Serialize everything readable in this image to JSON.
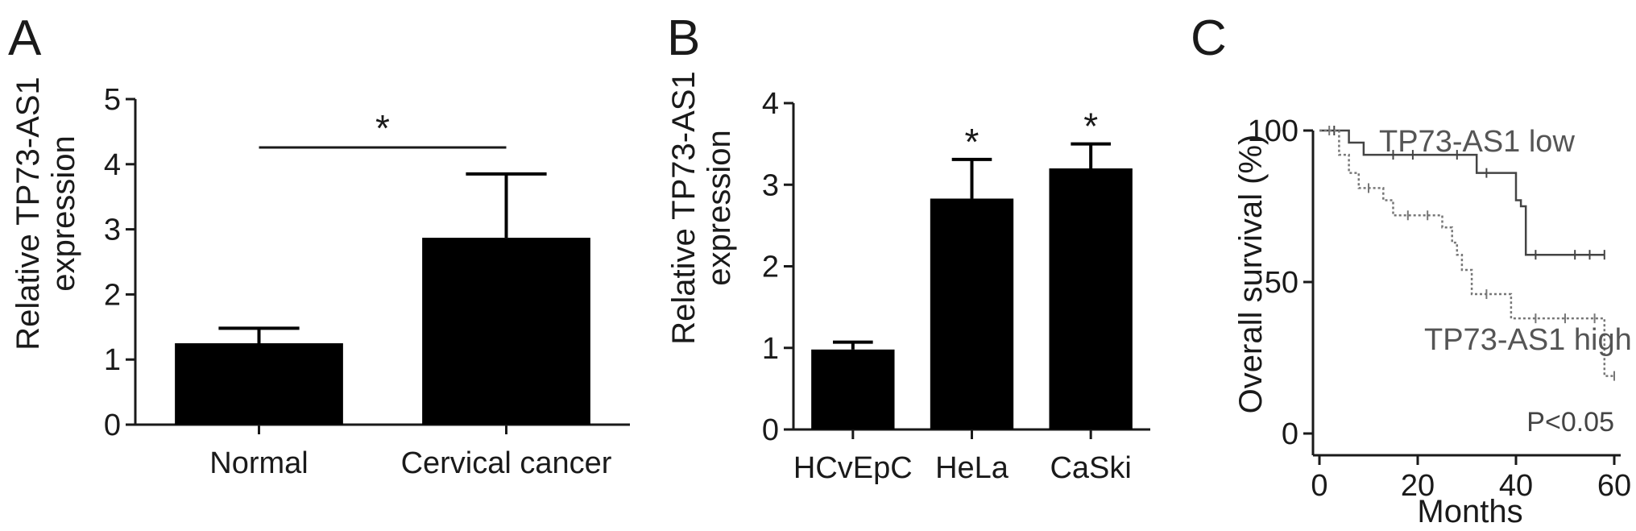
{
  "chart_data": [
    {
      "panel": "A",
      "type": "bar",
      "categories": [
        "Normal",
        "Cervical cancer"
      ],
      "values": [
        1.25,
        2.87
      ],
      "errors": [
        0.23,
        0.98
      ],
      "ylabel_lines": [
        "Relative TP73-AS1",
        "expression"
      ],
      "ylim": [
        0,
        5
      ],
      "yticks": [
        "0",
        "1",
        "2",
        "3",
        "4",
        "5"
      ],
      "significance": {
        "marker": "*",
        "between": [
          0,
          1
        ]
      }
    },
    {
      "panel": "B",
      "type": "bar",
      "categories": [
        "HCvEpC",
        "HeLa",
        "CaSki"
      ],
      "values": [
        0.98,
        2.83,
        3.2
      ],
      "errors": [
        0.09,
        0.48,
        0.3
      ],
      "ylabel_lines": [
        "Relative TP73-AS1",
        "expression"
      ],
      "ylim": [
        0,
        4
      ],
      "yticks": [
        "0",
        "1",
        "2",
        "3",
        "4"
      ],
      "markers": [
        "",
        "*",
        "*"
      ]
    },
    {
      "panel": "C",
      "type": "line",
      "subtype": "kaplan-meier",
      "xlabel": "Months",
      "ylabel": "Overall survival (%)",
      "xlim": [
        0,
        60
      ],
      "ylim": [
        0,
        100
      ],
      "xticks": [
        "0",
        "20",
        "40",
        "60"
      ],
      "yticks": [
        "0",
        "50",
        "100"
      ],
      "annotation": "P<0.05",
      "series": [
        {
          "name": "TP73-AS1 low",
          "style": "solid",
          "color": "#444444",
          "steps": [
            [
              0,
              100
            ],
            [
              6,
              100
            ],
            [
              6,
              96
            ],
            [
              9,
              96
            ],
            [
              9,
              92
            ],
            [
              32,
              92
            ],
            [
              32,
              86
            ],
            [
              40,
              86
            ],
            [
              40,
              77
            ],
            [
              41,
              77
            ],
            [
              41,
              75
            ],
            [
              42,
              75
            ],
            [
              42,
              59
            ],
            [
              58,
              59
            ]
          ],
          "censored": [
            [
              3,
              100
            ],
            [
              15,
              92
            ],
            [
              19,
              92
            ],
            [
              28,
              92
            ],
            [
              34,
              86
            ],
            [
              44,
              59
            ],
            [
              52,
              59
            ],
            [
              55,
              59
            ],
            [
              58,
              59
            ]
          ]
        },
        {
          "name": "TP73-AS1 high",
          "style": "dotted",
          "color": "#777777",
          "steps": [
            [
              0,
              100
            ],
            [
              4,
              100
            ],
            [
              4,
              92
            ],
            [
              6,
              92
            ],
            [
              6,
              86
            ],
            [
              8,
              86
            ],
            [
              8,
              81
            ],
            [
              13,
              81
            ],
            [
              13,
              77
            ],
            [
              15,
              77
            ],
            [
              15,
              72
            ],
            [
              25,
              72
            ],
            [
              25,
              68
            ],
            [
              27,
              68
            ],
            [
              27,
              63
            ],
            [
              28,
              63
            ],
            [
              28,
              59
            ],
            [
              29,
              59
            ],
            [
              29,
              54
            ],
            [
              31,
              54
            ],
            [
              31,
              46
            ],
            [
              39,
              46
            ],
            [
              39,
              38
            ],
            [
              58,
              38
            ],
            [
              58,
              19
            ],
            [
              60,
              19
            ]
          ],
          "censored": [
            [
              2,
              100
            ],
            [
              10,
              81
            ],
            [
              18,
              72
            ],
            [
              22,
              72
            ],
            [
              34,
              46
            ],
            [
              44,
              38
            ],
            [
              50,
              38
            ],
            [
              56,
              38
            ],
            [
              60,
              19
            ]
          ]
        }
      ]
    }
  ]
}
